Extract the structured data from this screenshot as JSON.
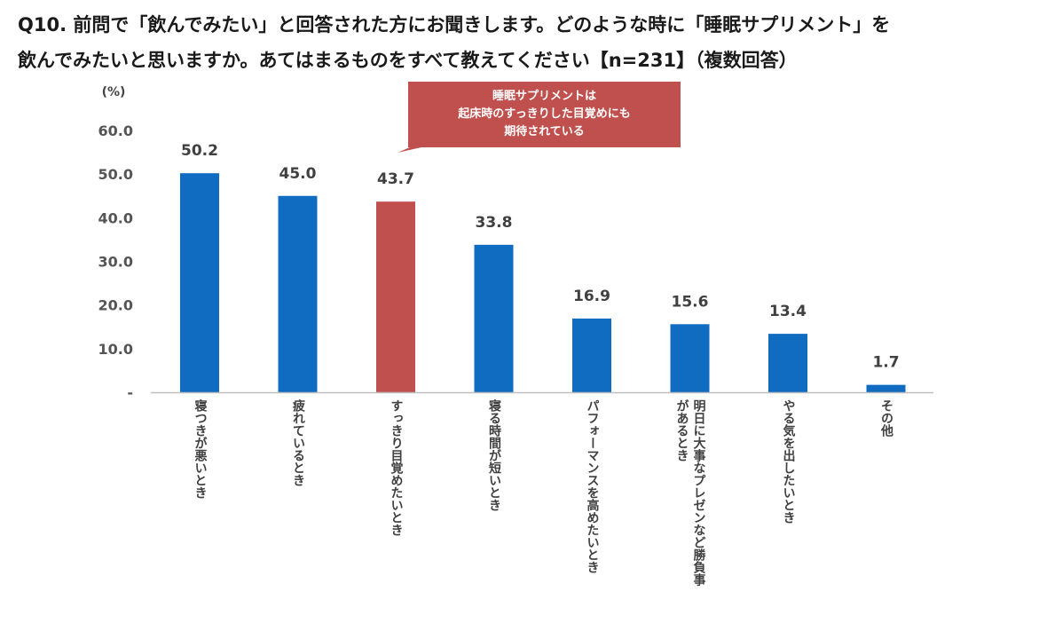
{
  "chart_data": {
    "type": "bar",
    "title_lines": [
      "Q10. 前問で「飲んでみたい」と回答された方にお聞きします。どのような時に「睡眠サプリメント」を",
      "飲んでみたいと思いますか。あてはまるものをすべて教えてください【n=231】（複数回答）"
    ],
    "ylabel": "(%)",
    "ylim": [
      0,
      60
    ],
    "ytick_labels": [
      "-",
      "10.0",
      "20.0",
      "30.0",
      "40.0",
      "50.0",
      "60.0"
    ],
    "categories": [
      [
        "寝つきが悪いとき"
      ],
      [
        "疲れているとき"
      ],
      [
        "すっきり目覚めたいとき"
      ],
      [
        "寝る時間が短いとき"
      ],
      [
        "パフォーマンスを高めたいとき"
      ],
      [
        "明日に大事なプレゼンなど勝負事",
        "があるとき"
      ],
      [
        "やる気を出したいとき"
      ],
      [
        "その他"
      ]
    ],
    "values": [
      50.2,
      45.0,
      43.7,
      33.8,
      16.9,
      15.6,
      13.4,
      1.7
    ],
    "value_labels": [
      "50.2",
      "45.0",
      "43.7",
      "33.8",
      "16.9",
      "15.6",
      "13.4",
      "1.7"
    ],
    "highlight_index": 2,
    "annotation": [
      "睡眠サプリメントは",
      "起床時のすっきりした目覚めにも",
      "期待されている"
    ]
  },
  "colors": {
    "bar": "#0f6cc0",
    "highlight": "#c0504d",
    "axis": "#bfbfbf",
    "text": "#404040"
  }
}
